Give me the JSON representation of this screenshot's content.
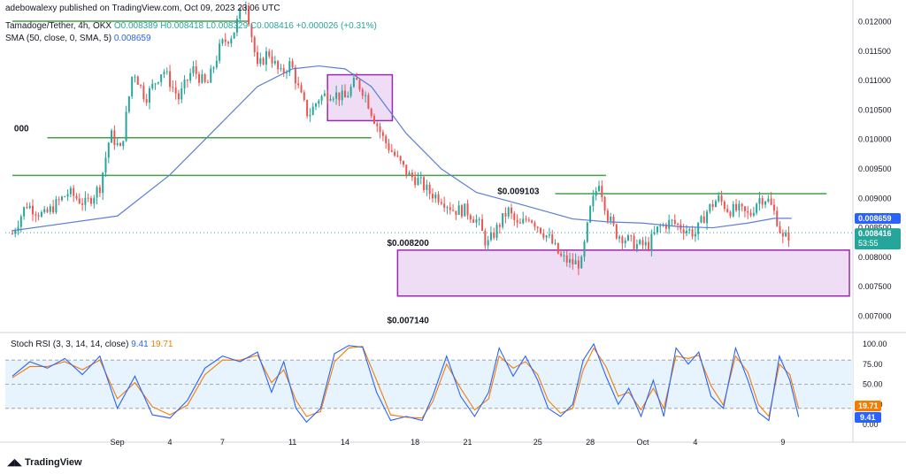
{
  "header": {
    "publisher": "adebowalexy published on TradingView.com, Oct 09, 2023 23:06 UTC",
    "symbol": "Tamadoge/Tether, 4h, OKX",
    "ohlc_o": "O0.008389",
    "ohlc_h": "H0.008418",
    "ohlc_l": "L0.008329",
    "ohlc_c": "C0.008416",
    "change": "+0.000026 (+0.31%)",
    "sma_label": "SMA (50, close, 0, SMA, 5)",
    "sma_value": "0.008659",
    "stoch_label": "Stoch RSI (3, 3, 14, 14, close)",
    "stoch_k": "9.41",
    "stoch_d": "19.71"
  },
  "footer": {
    "brand": "TradingView"
  },
  "colors": {
    "up": "#26a69a",
    "down": "#ef5350",
    "sma": "#5b7fd6",
    "zone_fill": "#ead2f1",
    "zone_stroke": "#9c27b0",
    "level": "#43a047",
    "k": "#2962ff",
    "d": "#f57c00",
    "band": "#e3f2fd"
  },
  "chart_data": {
    "type": "candlestick",
    "price_axis": {
      "ticks": [
        "0.012000",
        "0.011500",
        "0.011000",
        "0.010500",
        "0.010000",
        "0.009500",
        "0.009000",
        "0.008500",
        "0.008000",
        "0.007500",
        "0.007000"
      ],
      "range": [
        0.00675,
        0.0121
      ]
    },
    "x_ticks": [
      {
        "label": "Sep",
        "day": 1
      },
      {
        "label": "4",
        "day": 4
      },
      {
        "label": "7",
        "day": 7
      },
      {
        "label": "11",
        "day": 11
      },
      {
        "label": "14",
        "day": 14
      },
      {
        "label": "18",
        "day": 18
      },
      {
        "label": "21",
        "day": 21
      },
      {
        "label": "25",
        "day": 25
      },
      {
        "label": "28",
        "day": 28
      },
      {
        "label": "Oct",
        "day": 31
      },
      {
        "label": "4",
        "day": 34
      },
      {
        "label": "9",
        "day": 39
      }
    ],
    "series": [
      {
        "name": "SMA (50, close, 0, SMA, 5)",
        "points": [
          [
            -5,
            0.00845
          ],
          [
            1,
            0.0087
          ],
          [
            4,
            0.0094
          ],
          [
            7,
            0.0103
          ],
          [
            9,
            0.0109
          ],
          [
            11,
            0.0112
          ],
          [
            12.5,
            0.01125
          ],
          [
            14,
            0.0112
          ],
          [
            15.5,
            0.0109
          ],
          [
            17.5,
            0.0101
          ],
          [
            19.5,
            0.0095
          ],
          [
            21.5,
            0.0091
          ],
          [
            24,
            0.0089
          ],
          [
            27,
            0.00865
          ],
          [
            29,
            0.0086
          ],
          [
            31,
            0.00858
          ],
          [
            33,
            0.00852
          ],
          [
            35,
            0.0085
          ],
          [
            37,
            0.00858
          ],
          [
            38.5,
            0.00866
          ],
          [
            39.5,
            0.00866
          ]
        ]
      }
    ],
    "ohlc_path": [
      [
        -5,
        0.0084
      ],
      [
        -4.2,
        0.0089
      ],
      [
        -3.2,
        0.0087
      ],
      [
        -1.8,
        0.0091
      ],
      [
        -0.8,
        0.0089
      ],
      [
        0,
        0.0092
      ],
      [
        0.6,
        0.0101
      ],
      [
        1.2,
        0.0098
      ],
      [
        1.9,
        0.0112
      ],
      [
        2.6,
        0.0107
      ],
      [
        3.6,
        0.0112
      ],
      [
        4.5,
        0.0107
      ],
      [
        5.3,
        0.0112
      ],
      [
        6.1,
        0.0109
      ],
      [
        6.9,
        0.0116
      ],
      [
        7.6,
        0.0118
      ],
      [
        8.3,
        0.0124
      ],
      [
        9,
        0.0112
      ],
      [
        9.6,
        0.0115
      ],
      [
        10.3,
        0.0111
      ],
      [
        10.9,
        0.0113
      ],
      [
        11.4,
        0.0108
      ],
      [
        11.9,
        0.0104
      ],
      [
        12.5,
        0.0107
      ],
      [
        13.2,
        0.0108
      ],
      [
        14,
        0.0107
      ],
      [
        14.6,
        0.011
      ],
      [
        15.1,
        0.0108
      ],
      [
        15.6,
        0.0104
      ],
      [
        16.2,
        0.01
      ],
      [
        16.9,
        0.0097
      ],
      [
        17.6,
        0.0094
      ],
      [
        18.2,
        0.0093
      ],
      [
        18.8,
        0.0091
      ],
      [
        19.5,
        0.009
      ],
      [
        20.2,
        0.0088
      ],
      [
        20.9,
        0.0088
      ],
      [
        21.6,
        0.0086
      ],
      [
        22.1,
        0.0082
      ],
      [
        22.7,
        0.0085
      ],
      [
        23.3,
        0.0088
      ],
      [
        23.9,
        0.0085
      ],
      [
        24.5,
        0.0087
      ],
      [
        25.1,
        0.0085
      ],
      [
        25.7,
        0.0083
      ],
      [
        26.3,
        0.008
      ],
      [
        26.9,
        0.0079
      ],
      [
        27.5,
        0.0079
      ],
      [
        28,
        0.0088
      ],
      [
        28.5,
        0.0093
      ],
      [
        29,
        0.0087
      ],
      [
        29.5,
        0.0084
      ],
      [
        30.1,
        0.0083
      ],
      [
        30.7,
        0.0082
      ],
      [
        31.3,
        0.0082
      ],
      [
        31.9,
        0.0085
      ],
      [
        32.6,
        0.0086
      ],
      [
        33.3,
        0.0085
      ],
      [
        34,
        0.0084
      ],
      [
        34.7,
        0.0088
      ],
      [
        35.3,
        0.009
      ],
      [
        35.9,
        0.0088
      ],
      [
        36.5,
        0.0088
      ],
      [
        37.1,
        0.0087
      ],
      [
        37.6,
        0.009
      ],
      [
        38.1,
        0.009
      ],
      [
        38.6,
        0.0087
      ],
      [
        39,
        0.0083
      ],
      [
        39.4,
        0.00838
      ]
    ],
    "zones": [
      {
        "from": 13,
        "to": 16.7,
        "low": 0.01032,
        "high": 0.0111
      },
      {
        "from": 17,
        "to": 42.8,
        "low": 0.00734,
        "high": 0.00812
      }
    ],
    "levels": [
      {
        "value": 0.00939,
        "from": -5,
        "to": 28.9
      },
      {
        "value": 0.01003,
        "from": -3,
        "to": 15.5
      },
      {
        "value": 0.00908,
        "from": 26,
        "to": 41.5
      },
      {
        "value": 0.01201,
        "from": -5,
        "to": 8.5
      }
    ],
    "annotations": [
      {
        "text": "$0.009103",
        "day": 22.7,
        "price": 0.00913
      },
      {
        "text": "$0.008200",
        "day": 16.4,
        "price": 0.00825
      },
      {
        "text": "$0.007140",
        "day": 16.4,
        "price": 0.00694
      },
      {
        "text": "000",
        "day": -4.9,
        "price": 0.0102
      }
    ],
    "price_labels": [
      {
        "text": "0.008659",
        "value": 0.008659,
        "color": "#2962ff"
      },
      {
        "text": "0.008416",
        "value": 0.008416,
        "color": "#26a69a",
        "sub": "53:55"
      }
    ],
    "stoch": {
      "ticks": [
        "100.00",
        "75.00",
        "50.00",
        "25.00",
        "0.00"
      ],
      "band": [
        20,
        80
      ],
      "k_points": [
        [
          -5,
          60
        ],
        [
          -4,
          78
        ],
        [
          -3,
          70
        ],
        [
          -2,
          82
        ],
        [
          -1,
          62
        ],
        [
          0,
          85
        ],
        [
          1,
          20
        ],
        [
          2,
          60
        ],
        [
          3,
          12
        ],
        [
          4,
          8
        ],
        [
          5,
          30
        ],
        [
          6,
          70
        ],
        [
          7,
          85
        ],
        [
          8,
          78
        ],
        [
          9,
          90
        ],
        [
          9.8,
          40
        ],
        [
          10.5,
          78
        ],
        [
          11.2,
          20
        ],
        [
          11.8,
          3
        ],
        [
          12.6,
          20
        ],
        [
          13.4,
          88
        ],
        [
          14.2,
          98
        ],
        [
          15,
          96
        ],
        [
          15.8,
          40
        ],
        [
          16.6,
          5
        ],
        [
          17.5,
          10
        ],
        [
          18.4,
          5
        ],
        [
          19,
          35
        ],
        [
          19.8,
          85
        ],
        [
          20.6,
          35
        ],
        [
          21.4,
          10
        ],
        [
          22.2,
          40
        ],
        [
          22.8,
          95
        ],
        [
          23.6,
          60
        ],
        [
          24.3,
          85
        ],
        [
          25,
          55
        ],
        [
          25.6,
          20
        ],
        [
          26.3,
          10
        ],
        [
          27,
          25
        ],
        [
          27.6,
          80
        ],
        [
          28.2,
          100
        ],
        [
          28.9,
          60
        ],
        [
          29.6,
          25
        ],
        [
          30.2,
          45
        ],
        [
          30.9,
          10
        ],
        [
          31.6,
          55
        ],
        [
          32.2,
          10
        ],
        [
          32.9,
          95
        ],
        [
          33.6,
          75
        ],
        [
          34.2,
          90
        ],
        [
          34.9,
          35
        ],
        [
          35.6,
          20
        ],
        [
          36.3,
          95
        ],
        [
          37,
          55
        ],
        [
          37.6,
          15
        ],
        [
          38.2,
          5
        ],
        [
          38.8,
          85
        ],
        [
          39.4,
          55
        ],
        [
          39.9,
          9.41
        ]
      ],
      "d_points": [
        [
          -5,
          58
        ],
        [
          -4,
          72
        ],
        [
          -3,
          72
        ],
        [
          -2,
          78
        ],
        [
          -1,
          68
        ],
        [
          0,
          80
        ],
        [
          1,
          32
        ],
        [
          2,
          52
        ],
        [
          3,
          22
        ],
        [
          4,
          12
        ],
        [
          5,
          24
        ],
        [
          6,
          62
        ],
        [
          7,
          80
        ],
        [
          8,
          80
        ],
        [
          9,
          86
        ],
        [
          9.8,
          52
        ],
        [
          10.5,
          68
        ],
        [
          11.2,
          30
        ],
        [
          11.8,
          10
        ],
        [
          12.6,
          16
        ],
        [
          13.4,
          78
        ],
        [
          14.2,
          95
        ],
        [
          15,
          97
        ],
        [
          15.8,
          55
        ],
        [
          16.6,
          12
        ],
        [
          17.5,
          9
        ],
        [
          18.4,
          8
        ],
        [
          19,
          28
        ],
        [
          19.8,
          75
        ],
        [
          20.6,
          45
        ],
        [
          21.4,
          18
        ],
        [
          22.2,
          32
        ],
        [
          22.8,
          85
        ],
        [
          23.6,
          70
        ],
        [
          24.3,
          78
        ],
        [
          25,
          62
        ],
        [
          25.6,
          30
        ],
        [
          26.3,
          14
        ],
        [
          27,
          20
        ],
        [
          27.6,
          68
        ],
        [
          28.2,
          95
        ],
        [
          28.9,
          72
        ],
        [
          29.6,
          35
        ],
        [
          30.2,
          40
        ],
        [
          30.9,
          18
        ],
        [
          31.6,
          45
        ],
        [
          32.2,
          20
        ],
        [
          32.9,
          85
        ],
        [
          33.6,
          82
        ],
        [
          34.2,
          86
        ],
        [
          34.9,
          48
        ],
        [
          35.6,
          24
        ],
        [
          36.3,
          85
        ],
        [
          37,
          65
        ],
        [
          37.6,
          25
        ],
        [
          38.2,
          10
        ],
        [
          38.8,
          75
        ],
        [
          39.4,
          62
        ],
        [
          39.9,
          19.71
        ]
      ]
    }
  }
}
